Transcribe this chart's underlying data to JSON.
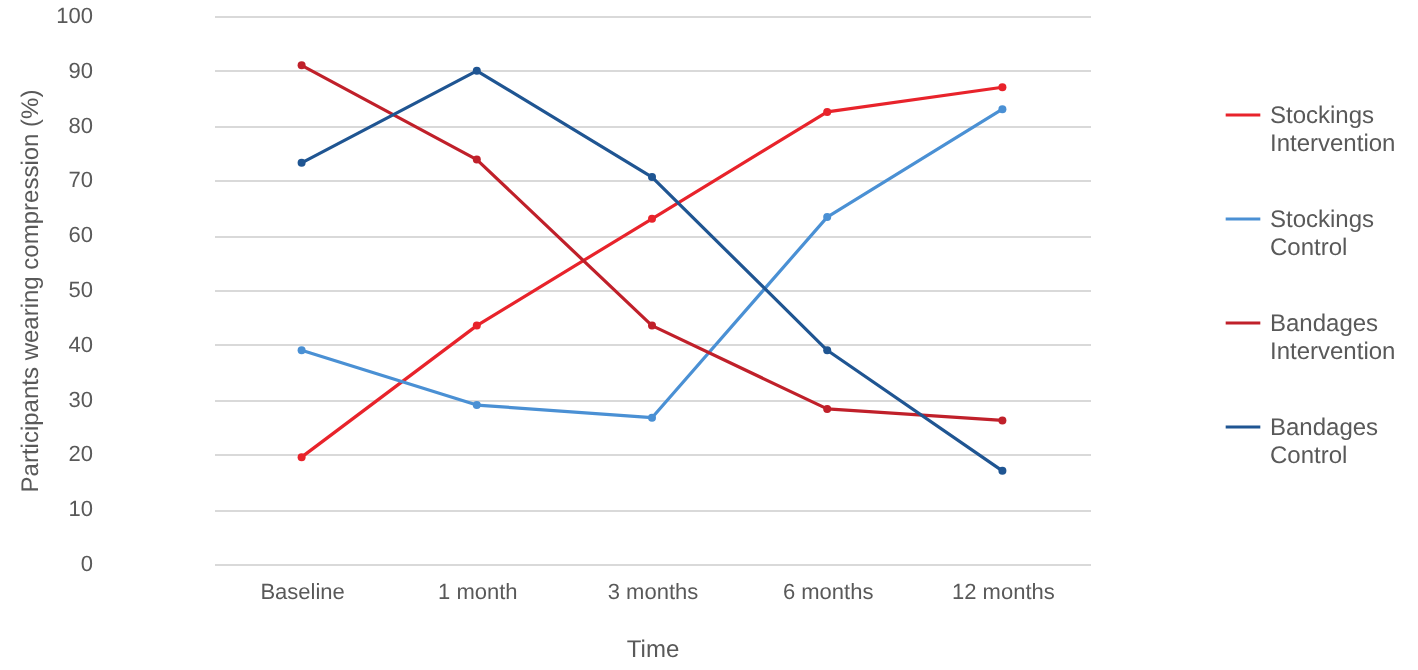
{
  "chart_data": {
    "type": "line",
    "xlabel": "Time",
    "ylabel": "Participants wearing compression (%)",
    "categories": [
      "Baseline",
      "1 month",
      "3 months",
      "6 months",
      "12 months"
    ],
    "series": [
      {
        "name": "Stockings Intervention",
        "color": "#e8232b",
        "values": [
          19.5,
          43.5,
          63,
          82.5,
          87
        ]
      },
      {
        "name": "Stockings Control",
        "color": "#4a90d4",
        "values": [
          39,
          29,
          26.7,
          63.3,
          83
        ]
      },
      {
        "name": "Bandages Intervention",
        "color": "#c0202a",
        "values": [
          91,
          73.8,
          43.5,
          28.3,
          26.2
        ]
      },
      {
        "name": "Bandages Control",
        "color": "#1f5592",
        "values": [
          73.2,
          90,
          70.6,
          39,
          17
        ]
      }
    ],
    "ylim": [
      0,
      100
    ],
    "yticks": [
      0,
      10,
      20,
      30,
      40,
      50,
      60,
      70,
      80,
      90,
      100
    ],
    "grid": "y",
    "legend": "right",
    "marker": "circle",
    "line_style": "solid"
  }
}
